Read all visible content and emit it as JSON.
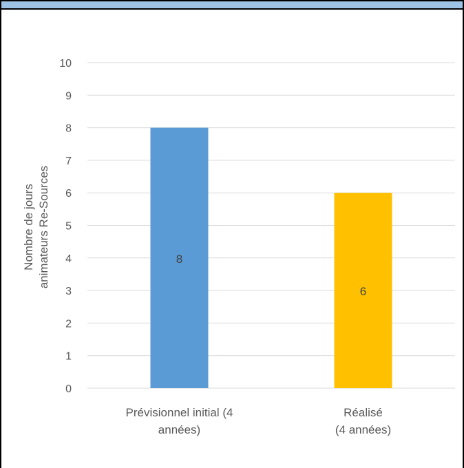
{
  "chart_data": {
    "type": "bar",
    "categories": [
      [
        "Prévisionnel initial  (4",
        "années)"
      ],
      [
        "Réalisé",
        "(4 années)"
      ]
    ],
    "values": [
      8,
      6
    ],
    "data_labels": [
      "8",
      "6"
    ],
    "bar_colors": [
      "#5b9bd5",
      "#ffc000"
    ],
    "ylabel": [
      "Nombre de jours",
      "animateurs Re-Sources"
    ],
    "ylim": [
      0,
      10
    ],
    "y_ticks": [
      "0",
      "1",
      "2",
      "3",
      "4",
      "5",
      "6",
      "7",
      "8",
      "9",
      "10"
    ],
    "grid": true
  }
}
